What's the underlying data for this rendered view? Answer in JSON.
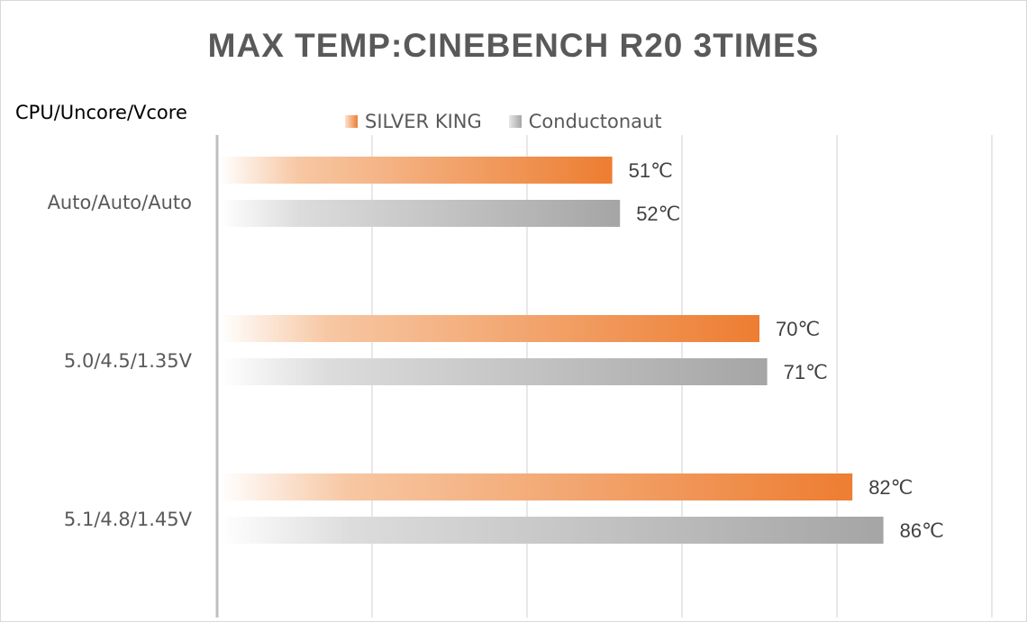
{
  "chart_data": {
    "type": "bar",
    "orientation": "horizontal",
    "title": "MAX TEMP:CINEBENCH R20 3TIMES",
    "ylabel": "CPU/Uncore/Vcore",
    "xlabel": "",
    "categories": [
      "Auto/Auto/Auto",
      "5.0/4.5/1.35V",
      "5.1/4.8/1.45V"
    ],
    "series": [
      {
        "name": "SILVER KING",
        "values": [
          51,
          70,
          82
        ],
        "labels": [
          "51℃",
          "70℃",
          "82℃"
        ],
        "color": "#ed7d31"
      },
      {
        "name": "Conductonaut",
        "values": [
          52,
          71,
          86
        ],
        "labels": [
          "52℃",
          "71℃",
          "86℃"
        ],
        "color": "#a5a5a5"
      }
    ],
    "xlim": [
      0,
      100
    ],
    "gridlines": [
      0,
      20,
      40,
      60,
      80,
      100
    ],
    "grid": true,
    "legend": "top-center"
  }
}
